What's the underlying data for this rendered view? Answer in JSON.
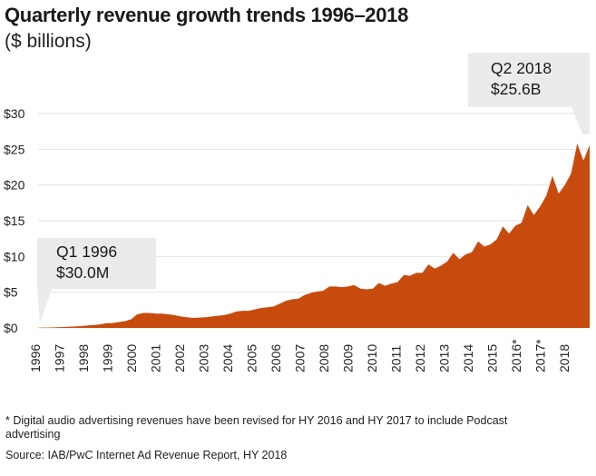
{
  "title": "Quarterly revenue growth trends 1996–2018",
  "subtitle": "($ billions)",
  "footnote": "* Digital audio advertising revenues have been revised for HY 2016 and HY 2017 to include Podcast advertising",
  "source": "Source: IAB/PwC Internet Ad Revenue Report, HY 2018",
  "colors": {
    "area": "#c84b0e",
    "callout_bg": "#ebebeb",
    "grid": "#e4e4e4"
  },
  "chart_data": {
    "type": "area",
    "title": "Quarterly revenue growth trends 1996–2018",
    "ylabel": "$ billions",
    "xlabel": "",
    "ylim": [
      0,
      30
    ],
    "yticks": [
      0,
      5,
      10,
      15,
      20,
      25,
      30
    ],
    "ytick_labels": [
      "$0",
      "$5",
      "$10",
      "$15",
      "$20",
      "$25",
      "$30"
    ],
    "xtick_labels": [
      "1996",
      "1997",
      "1998",
      "1999",
      "2000",
      "2001",
      "2002",
      "2003",
      "2004",
      "2005",
      "2006",
      "2007",
      "2008",
      "2009",
      "2010",
      "2011",
      "2012",
      "2013",
      "2014",
      "2015",
      "2016*",
      "2017*",
      "2018"
    ],
    "grid": true,
    "series": [
      {
        "name": "Quarterly revenue",
        "values": [
          0.03,
          0.05,
          0.07,
          0.1,
          0.13,
          0.17,
          0.21,
          0.25,
          0.35,
          0.42,
          0.49,
          0.66,
          0.69,
          0.82,
          0.93,
          1.2,
          1.9,
          2.1,
          2.1,
          2.0,
          2.0,
          1.9,
          1.8,
          1.6,
          1.5,
          1.4,
          1.45,
          1.5,
          1.6,
          1.7,
          1.8,
          2.0,
          2.3,
          2.4,
          2.4,
          2.6,
          2.8,
          2.9,
          3.0,
          3.4,
          3.8,
          4.0,
          4.1,
          4.6,
          4.9,
          5.1,
          5.2,
          5.8,
          5.8,
          5.7,
          5.8,
          6.0,
          5.5,
          5.4,
          5.5,
          6.3,
          5.9,
          6.2,
          6.4,
          7.4,
          7.3,
          7.7,
          7.7,
          8.9,
          8.3,
          8.7,
          9.3,
          10.5,
          9.6,
          10.3,
          10.6,
          12.1,
          11.4,
          11.7,
          12.4,
          14.2,
          13.2,
          14.3,
          14.7,
          17.2,
          15.8,
          17.0,
          18.5,
          21.3,
          18.8,
          20.0,
          21.6,
          25.8,
          23.4,
          25.6
        ]
      }
    ],
    "annotations": [
      {
        "line1": "Q1 1996",
        "line2": "$30.0M"
      },
      {
        "line1": "Q2 2018",
        "line2": "$25.6B"
      }
    ]
  }
}
